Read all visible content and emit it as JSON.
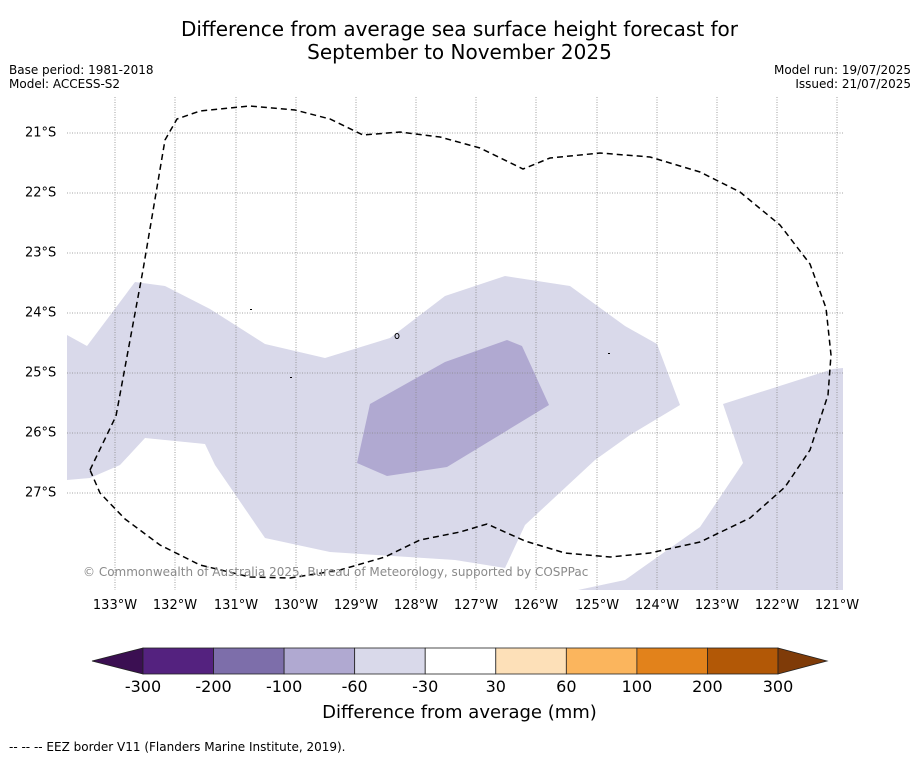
{
  "title_line1": "Difference from average sea surface height forecast for",
  "title_line2": "September to November 2025",
  "base_period": "Base period: 1981-2018",
  "model": "Model: ACCESS-S2",
  "model_run": "Model run: 19/07/2025",
  "issued": "Issued: 21/07/2025",
  "copyright": "© Commonwealth of Australia 2025, Bureau of Meteorology, supported by COSPPac",
  "footnote": "-- -- -- EEZ border V11 (Flanders Marine Institute, 2019).",
  "lat_labels": [
    "21°S",
    "22°S",
    "23°S",
    "24°S",
    "25°S",
    "26°S",
    "27°S"
  ],
  "lon_labels": [
    "133°W",
    "132°W",
    "131°W",
    "130°W",
    "129°W",
    "128°W",
    "127°W",
    "126°W",
    "125°W",
    "124°W",
    "123°W",
    "122°W",
    "121°W"
  ],
  "colorbar": {
    "title": "Difference from average (mm)",
    "tick_labels": [
      "-300",
      "-200",
      "-100",
      "-60",
      "-30",
      "30",
      "60",
      "100",
      "200",
      "300"
    ],
    "colors": [
      "#3b0f52",
      "#54227f",
      "#7d6eaa",
      "#b0a9d1",
      "#d9d9ea",
      "#ffffff",
      "#fde0b8",
      "#fbb55d",
      "#e2821b",
      "#b25806",
      "#7f3b08"
    ]
  },
  "colors": {
    "band_minus60_minus30": "#d9d9ea",
    "band_minus100_minus60": "#b0a9d1",
    "eez_border": "#000000"
  }
}
